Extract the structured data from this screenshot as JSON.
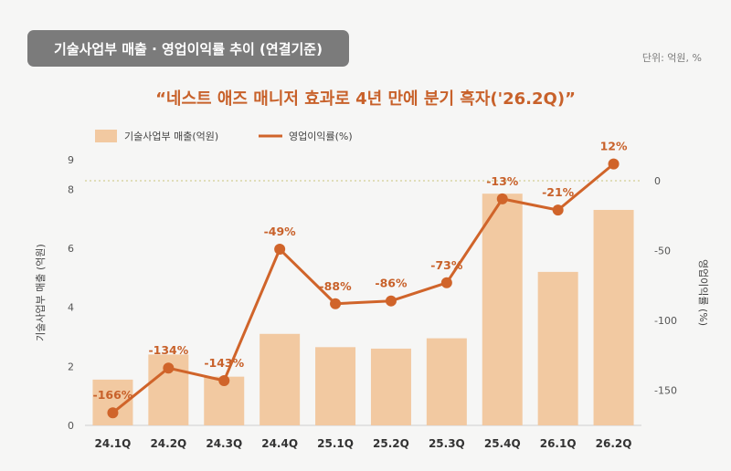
{
  "header": {
    "badge": "기술사업부 매출 · 영업이익률 추이 (연결기준)",
    "unit_note": "단위: 억원, %",
    "headline": "“네스트 애즈 매니저 효과로 4년 만에 분기 흑자('26.2Q)”"
  },
  "colors": {
    "bar": "#f2c9a1",
    "line": "#d0642a",
    "label": "#c8612a",
    "badge_bg": "#7b7b7b"
  },
  "chart_data": {
    "type": "bar",
    "categories": [
      "24.1Q",
      "24.2Q",
      "24.3Q",
      "24.4Q",
      "25.1Q",
      "25.2Q",
      "25.3Q",
      "25.4Q",
      "26.1Q",
      "26.2Q"
    ],
    "series": [
      {
        "name": "기술사업부 매출(억원)",
        "type": "bar",
        "axis": "left",
        "values": [
          1.55,
          2.4,
          1.65,
          3.1,
          2.65,
          2.6,
          2.95,
          7.85,
          5.2,
          7.3
        ]
      },
      {
        "name": "영업이익률(%)",
        "type": "line",
        "axis": "right",
        "values": [
          -166,
          -134,
          -143,
          -49,
          -88,
          -86,
          -73,
          -13,
          -21,
          12
        ],
        "labels": [
          "-166%",
          "-134%",
          "-143%",
          "-49%",
          "-88%",
          "-86%",
          "-73%",
          "-13%",
          "-21%",
          "12%"
        ]
      }
    ],
    "ylabel": "기술사업부 매출 (억원)",
    "y2label": "영업이익률 (%)",
    "ylim": [
      0,
      9
    ],
    "yticks": [
      "0",
      "2",
      "4",
      "6",
      "8",
      "9"
    ],
    "y2lim": [
      -175,
      15
    ],
    "y2ticks": [
      "0",
      "-50",
      "-100",
      "-150"
    ],
    "reference_line": "right axis 0, dotted",
    "legend": "top-left",
    "grid": false
  }
}
